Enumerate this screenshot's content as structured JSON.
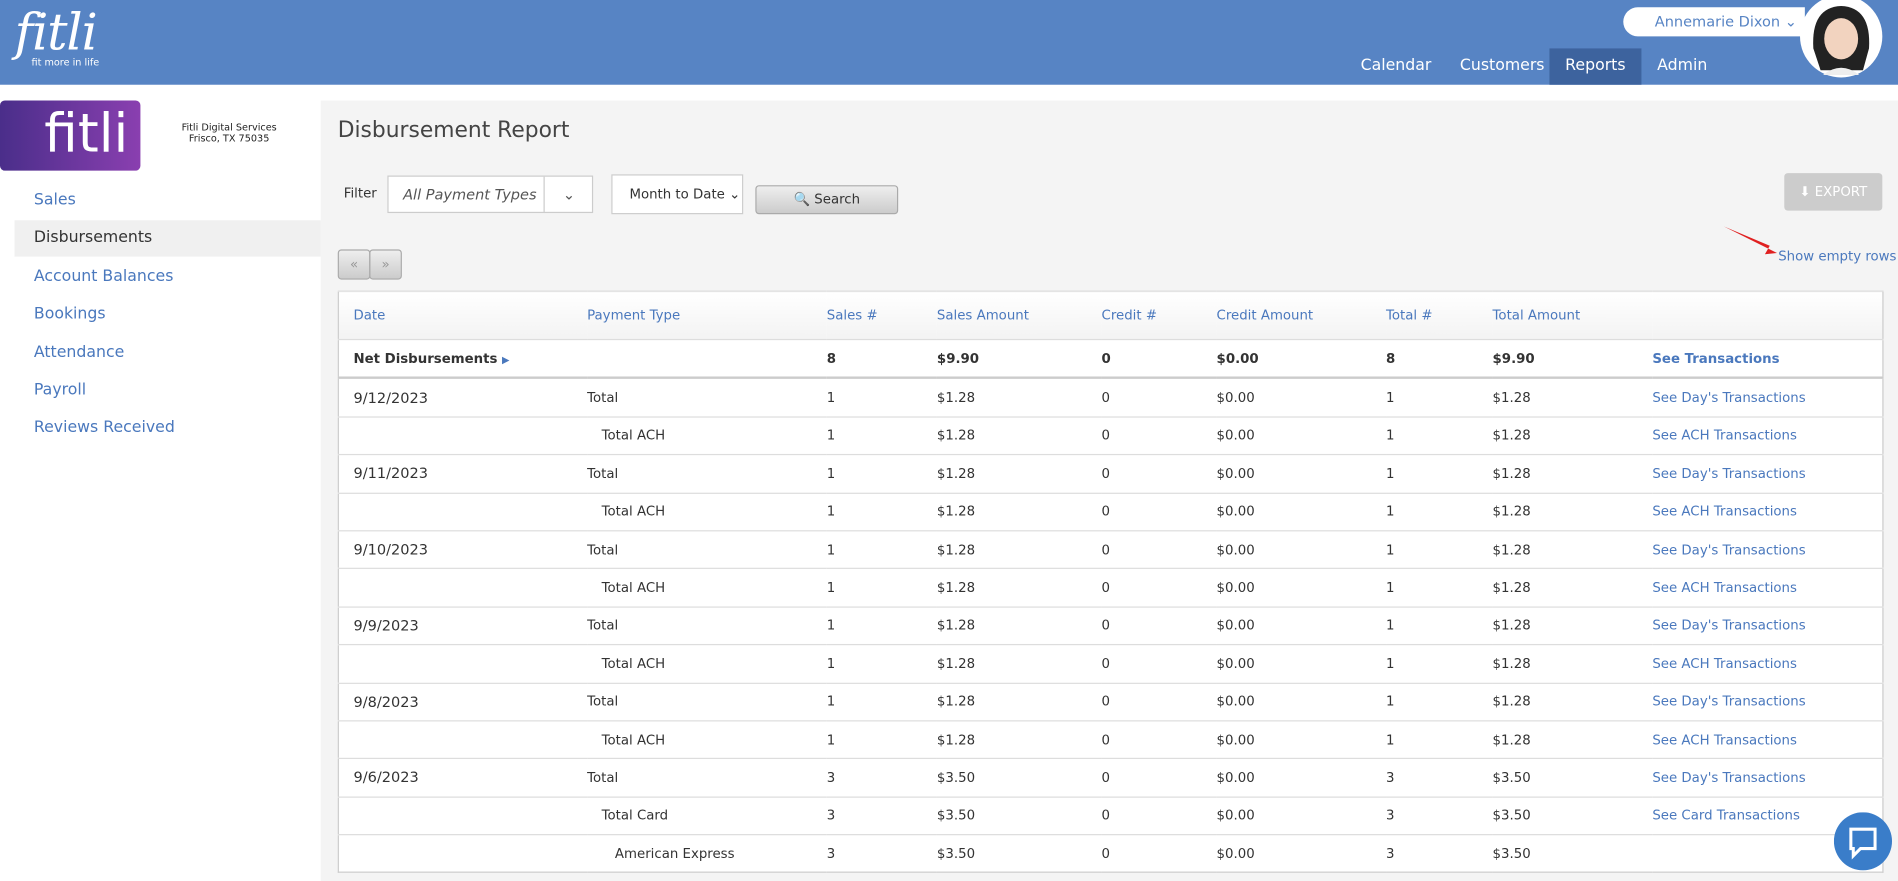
{
  "header": {
    "logo": "fitli",
    "tagline": "fit more in life",
    "user": "Annemarie Dixon",
    "nav": [
      "Calendar",
      "Customers",
      "Reports",
      "Admin"
    ],
    "active_nav": 2
  },
  "sidebar": {
    "logo": "fitli",
    "company": "Fitli Digital Services",
    "address": "Frisco, TX 75035",
    "menu": [
      "Sales",
      "Disbursements",
      "Account Balances",
      "Bookings",
      "Attendance",
      "Payroll",
      "Reviews Received"
    ],
    "active": 1
  },
  "main": {
    "title": "Disbursement Report",
    "filter_label": "Filter",
    "payment_types": "All Payment Types",
    "period": "Month to Date",
    "search": "Search",
    "export": "EXPORT",
    "show_empty": "Show empty rows",
    "prev": "«",
    "next": "»"
  },
  "table": {
    "columns": [
      "Date",
      "Payment Type",
      "Sales #",
      "Sales Amount",
      "Credit #",
      "Credit Amount",
      "Total #",
      "Total Amount"
    ],
    "summary": [
      "Net Disbursements",
      "8",
      "$9.90",
      "0",
      "$0.00",
      "8",
      "$9.90",
      "See Transactions"
    ],
    "rows": [
      [
        "9/12/2023",
        "Total",
        "1",
        "$1.28",
        "0",
        "$0.00",
        "1",
        "$1.28",
        "See Day's Transactions"
      ],
      [
        null,
        "Total ACH",
        "1",
        "$1.28",
        "0",
        "$0.00",
        "1",
        "$1.28",
        "See ACH Transactions"
      ],
      [
        "9/11/2023",
        "Total",
        "1",
        "$1.28",
        "0",
        "$0.00",
        "1",
        "$1.28",
        "See Day's Transactions"
      ],
      [
        null,
        "Total ACH",
        "1",
        "$1.28",
        "0",
        "$0.00",
        "1",
        "$1.28",
        "See ACH Transactions"
      ],
      [
        "9/10/2023",
        "Total",
        "1",
        "$1.28",
        "0",
        "$0.00",
        "1",
        "$1.28",
        "See Day's Transactions"
      ],
      [
        null,
        "Total ACH",
        "1",
        "$1.28",
        "0",
        "$0.00",
        "1",
        "$1.28",
        "See ACH Transactions"
      ],
      [
        "9/9/2023",
        "Total",
        "1",
        "$1.28",
        "0",
        "$0.00",
        "1",
        "$1.28",
        "See Day's Transactions"
      ],
      [
        null,
        "Total ACH",
        "1",
        "$1.28",
        "0",
        "$0.00",
        "1",
        "$1.28",
        "See ACH Transactions"
      ],
      [
        "9/8/2023",
        "Total",
        "1",
        "$1.28",
        "0",
        "$0.00",
        "1",
        "$1.28",
        "See Day's Transactions"
      ],
      [
        null,
        "Total ACH",
        "1",
        "$1.28",
        "0",
        "$0.00",
        "1",
        "$1.28",
        "See ACH Transactions"
      ],
      [
        "9/6/2023",
        "Total",
        "3",
        "$3.50",
        "0",
        "$0.00",
        "3",
        "$3.50",
        "See Day's Transactions"
      ],
      [
        null,
        "Total Card",
        "3",
        "$3.50",
        "0",
        "$0.00",
        "3",
        "$3.50",
        "See Card Transactions"
      ],
      [
        null,
        "American Express",
        "3",
        "$3.50",
        "0",
        "$0.00",
        "3",
        "$3.50",
        null
      ]
    ]
  }
}
